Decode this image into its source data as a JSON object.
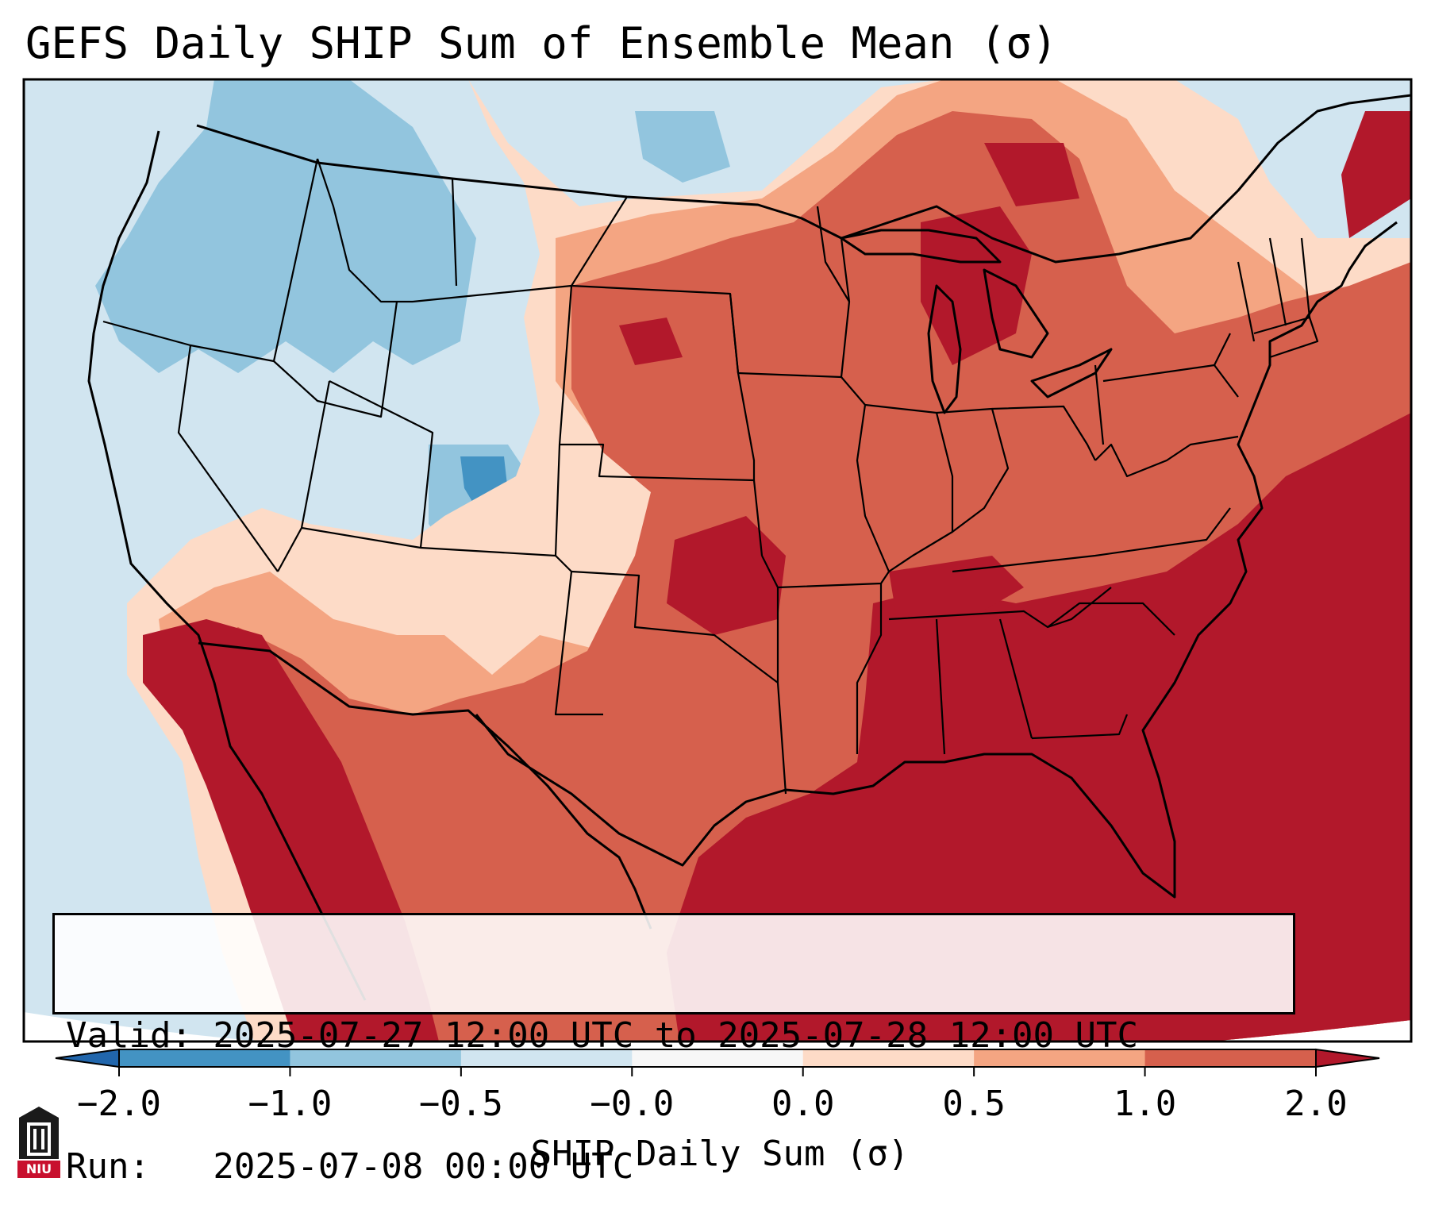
{
  "title": "GEFS Daily SHIP Sum of Ensemble Mean (σ)",
  "info": {
    "valid_line": "Valid: 2025-07-27 12:00 UTC to 2025-07-28 12:00 UTC",
    "run_line": "Run:   2025-07-08 00:00 UTC"
  },
  "colorbar": {
    "label": "SHIP Daily Sum (σ)",
    "ticks": [
      "−2.0",
      "−1.0",
      "−0.5",
      "−0.0",
      "0.0",
      "0.5",
      "1.0",
      "2.0"
    ],
    "bins": [
      {
        "range": "< -2.0",
        "color": "#2166ac"
      },
      {
        "range": "-2.0 to -1.0",
        "color": "#4393c3"
      },
      {
        "range": "-1.0 to -0.5",
        "color": "#92c5de"
      },
      {
        "range": "-0.5 to -0.0",
        "color": "#d1e5f0"
      },
      {
        "range": "-0.0 to 0.0",
        "color": "#f7f7f7"
      },
      {
        "range": "0.0 to 0.5",
        "color": "#fddbc7"
      },
      {
        "range": "0.5 to 1.0",
        "color": "#f4a582"
      },
      {
        "range": "1.0 to 2.0",
        "color": "#d6604d"
      },
      {
        "range": "> 2.0",
        "color": "#b2182b"
      }
    ],
    "extend": "both"
  },
  "map": {
    "projection": "Lambert Conformal",
    "domain": "CONUS",
    "borders": [
      "coastlines",
      "country borders",
      "US state borders"
    ],
    "field": "GEFS ensemble mean daily SHIP sum"
  },
  "logo": {
    "name": "niu-logo",
    "text": "NIU",
    "color": "#c8102e"
  }
}
